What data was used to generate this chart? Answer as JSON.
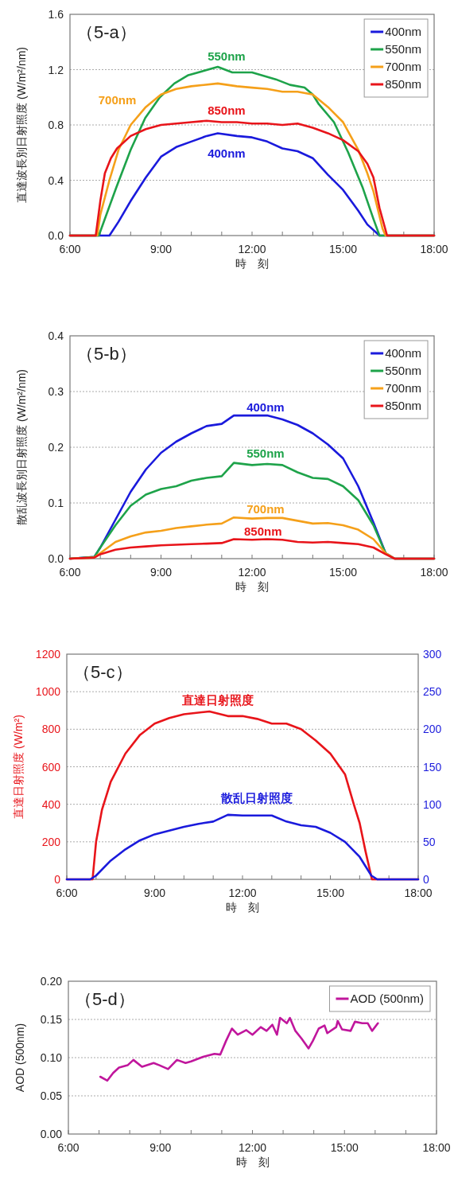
{
  "chart_data": [
    {
      "type": "line",
      "title": "（5-a）",
      "xlabel": "時　刻",
      "ylabel": "直達波長別日射照度 (W/m²/nm)",
      "xlim": [
        6,
        18
      ],
      "ylim": [
        0,
        1.6
      ],
      "xticks": [
        {
          "value": 6,
          "label": "6:00"
        },
        {
          "value": 7,
          "label": null
        },
        {
          "value": 8,
          "label": null
        },
        {
          "value": 9,
          "label": "9:00"
        },
        {
          "value": 10,
          "label": null
        },
        {
          "value": 11,
          "label": null
        },
        {
          "value": 12,
          "label": "12:00"
        },
        {
          "value": 13,
          "label": null
        },
        {
          "value": 14,
          "label": null
        },
        {
          "value": 15,
          "label": "15:00"
        },
        {
          "value": 16,
          "label": null
        },
        {
          "value": 17,
          "label": null
        },
        {
          "value": 18,
          "label": "18:00"
        }
      ],
      "yticks": [
        {
          "value": 0,
          "label": "0.0"
        },
        0.4,
        0.8,
        1.2,
        1.6
      ],
      "grid": "y",
      "legend": "top right",
      "marker": "none",
      "line_style": "solid",
      "annotations": [
        "400nm",
        "550nm",
        "700nm",
        "850nm"
      ],
      "series": [
        {
          "name": "400nm",
          "color": "#1a1adc",
          "x": [
            6,
            7.3,
            7.6,
            8,
            8.5,
            9,
            9.5,
            10,
            10.5,
            10.87,
            11.5,
            12,
            12.5,
            13,
            13.5,
            14,
            14.5,
            15,
            15.5,
            15.8,
            16.2,
            18
          ],
          "values": [
            0,
            0,
            0.1,
            0.25,
            0.42,
            0.57,
            0.64,
            0.68,
            0.72,
            0.74,
            0.72,
            0.71,
            0.68,
            0.63,
            0.61,
            0.56,
            0.44,
            0.33,
            0.18,
            0.08,
            0,
            0
          ]
        },
        {
          "name": "550nm",
          "color": "#1ea34a",
          "x": [
            6,
            6.95,
            7.53,
            8,
            8.48,
            8.96,
            9.44,
            9.9,
            10.87,
            11.35,
            12,
            12.78,
            13.25,
            13.73,
            14,
            14.2,
            14.7,
            15.17,
            15.64,
            16,
            16.2,
            18
          ],
          "values": [
            0,
            0,
            0.35,
            0.62,
            0.85,
            1.0,
            1.1,
            1.16,
            1.22,
            1.18,
            1.18,
            1.13,
            1.09,
            1.07,
            1.02,
            0.95,
            0.82,
            0.6,
            0.35,
            0.12,
            0,
            0
          ]
        },
        {
          "name": "700nm",
          "color": "#f5a01a",
          "x": [
            6,
            6.9,
            7,
            7.3,
            7.6,
            8,
            8.5,
            9,
            9.5,
            10,
            10.87,
            11.5,
            12,
            12.5,
            13,
            13.5,
            14,
            14.5,
            15,
            15.5,
            15.8,
            16,
            16.3,
            16.4,
            18
          ],
          "values": [
            0,
            0,
            0.15,
            0.4,
            0.62,
            0.8,
            0.93,
            1.02,
            1.06,
            1.08,
            1.1,
            1.08,
            1.07,
            1.06,
            1.04,
            1.04,
            1.02,
            0.93,
            0.82,
            0.62,
            0.45,
            0.32,
            0.05,
            0,
            0
          ]
        },
        {
          "name": "850nm",
          "color": "#e8141a",
          "x": [
            6,
            6.85,
            7,
            7.15,
            7.35,
            7.55,
            8,
            8.5,
            9,
            9.5,
            10,
            10.5,
            11,
            11.5,
            12,
            12.5,
            13,
            13.5,
            14,
            14.5,
            15,
            15.5,
            15.8,
            16,
            16.2,
            16.45,
            18
          ],
          "values": [
            0,
            0,
            0.25,
            0.45,
            0.56,
            0.63,
            0.72,
            0.77,
            0.8,
            0.81,
            0.82,
            0.83,
            0.82,
            0.82,
            0.81,
            0.81,
            0.8,
            0.81,
            0.78,
            0.74,
            0.69,
            0.61,
            0.52,
            0.42,
            0.2,
            0,
            0
          ]
        }
      ]
    },
    {
      "type": "line",
      "title": "（5-b）",
      "xlabel": "時　刻",
      "ylabel": "散乱波長別日射照度 (W/m²/nm)",
      "xlim": [
        6,
        18
      ],
      "ylim": [
        0,
        0.4
      ],
      "xticks": [
        {
          "value": 6,
          "label": "6:00"
        },
        {
          "value": 7,
          "label": null
        },
        {
          "value": 8,
          "label": null
        },
        {
          "value": 9,
          "label": "9:00"
        },
        {
          "value": 10,
          "label": null
        },
        {
          "value": 11,
          "label": null
        },
        {
          "value": 12,
          "label": "12:00"
        },
        {
          "value": 13,
          "label": null
        },
        {
          "value": 14,
          "label": null
        },
        {
          "value": 15,
          "label": "15:00"
        },
        {
          "value": 16,
          "label": null
        },
        {
          "value": 17,
          "label": null
        },
        {
          "value": 18,
          "label": "18:00"
        }
      ],
      "yticks": [
        {
          "value": 0,
          "label": "0.0"
        },
        0.1,
        0.2,
        0.3,
        0.4
      ],
      "grid": "y",
      "legend": "top right",
      "marker": "none",
      "line_style": "solid",
      "annotations": [
        "400nm",
        "550nm",
        "700nm",
        "850nm"
      ],
      "series": [
        {
          "name": "400nm",
          "color": "#1a1adc",
          "x": [
            6,
            6.8,
            7,
            7.5,
            8,
            8.5,
            9,
            9.5,
            10,
            10.5,
            11,
            11.4,
            12,
            12.5,
            13,
            13.5,
            14,
            14.5,
            15,
            15.5,
            16,
            16.4,
            16.7,
            18
          ],
          "values": [
            0,
            0.003,
            0.02,
            0.07,
            0.12,
            0.16,
            0.19,
            0.21,
            0.225,
            0.238,
            0.242,
            0.257,
            0.257,
            0.257,
            0.25,
            0.24,
            0.225,
            0.205,
            0.18,
            0.13,
            0.065,
            0.01,
            0,
            0
          ]
        },
        {
          "name": "550nm",
          "color": "#1ea34a",
          "x": [
            6,
            6.8,
            7,
            7.5,
            8,
            8.5,
            9,
            9.5,
            10,
            10.5,
            11,
            11.4,
            12,
            12.5,
            13,
            13.5,
            14,
            14.5,
            15,
            15.5,
            16,
            16.4,
            16.7,
            18
          ],
          "values": [
            0,
            0.003,
            0.02,
            0.06,
            0.095,
            0.115,
            0.125,
            0.13,
            0.14,
            0.145,
            0.148,
            0.172,
            0.168,
            0.17,
            0.168,
            0.155,
            0.145,
            0.143,
            0.13,
            0.105,
            0.06,
            0.01,
            0,
            0
          ]
        },
        {
          "name": "700nm",
          "color": "#f5a01a",
          "x": [
            6,
            6.8,
            7,
            7.5,
            8,
            8.5,
            9,
            9.5,
            10,
            10.5,
            11,
            11.4,
            12,
            12.5,
            13,
            13.5,
            14,
            14.5,
            15,
            15.5,
            16,
            16.4,
            16.7,
            18
          ],
          "values": [
            0,
            0.002,
            0.01,
            0.03,
            0.04,
            0.047,
            0.05,
            0.055,
            0.058,
            0.061,
            0.063,
            0.074,
            0.072,
            0.073,
            0.073,
            0.068,
            0.063,
            0.064,
            0.06,
            0.052,
            0.035,
            0.01,
            0,
            0
          ]
        },
        {
          "name": "850nm",
          "color": "#e8141a",
          "x": [
            6,
            6.8,
            7,
            7.5,
            8,
            8.5,
            9,
            9.5,
            10,
            10.5,
            11,
            11.4,
            12,
            12.5,
            13,
            13.5,
            14,
            14.5,
            15,
            15.5,
            16,
            16.4,
            16.7,
            18
          ],
          "values": [
            0,
            0.002,
            0.008,
            0.016,
            0.02,
            0.022,
            0.024,
            0.025,
            0.026,
            0.027,
            0.028,
            0.035,
            0.034,
            0.035,
            0.034,
            0.03,
            0.029,
            0.03,
            0.028,
            0.026,
            0.02,
            0.008,
            0,
            0
          ]
        }
      ]
    },
    {
      "type": "line",
      "title": "（5-c）",
      "xlabel": "時　刻",
      "ylabel": "直達日射照度 (W/m²)",
      "xlim": [
        6,
        18
      ],
      "ylim": [
        0,
        1200
      ],
      "y2lim": [
        0,
        300
      ],
      "xticks": [
        {
          "value": 6,
          "label": "6:00"
        },
        {
          "value": 7,
          "label": null
        },
        {
          "value": 8,
          "label": null
        },
        {
          "value": 9,
          "label": "9:00"
        },
        {
          "value": 10,
          "label": null
        },
        {
          "value": 11,
          "label": null
        },
        {
          "value": 12,
          "label": "12:00"
        },
        {
          "value": 13,
          "label": null
        },
        {
          "value": 14,
          "label": null
        },
        {
          "value": 15,
          "label": "15:00"
        },
        {
          "value": 16,
          "label": null
        },
        {
          "value": 17,
          "label": null
        },
        {
          "value": 18,
          "label": "18:00"
        }
      ],
      "yticks": [
        0,
        200,
        400,
        600,
        800,
        1000,
        1200
      ],
      "y2ticks": [
        0,
        50,
        100,
        150,
        200,
        250,
        300
      ],
      "grid": "y",
      "marker": "none",
      "line_style": "solid",
      "annotations": [
        "直達日射照度",
        "散乱日射照度"
      ],
      "series": [
        {
          "color": "#e8141a",
          "x": [
            6,
            6.88,
            7,
            7.2,
            7.5,
            8,
            8.5,
            9,
            9.5,
            10,
            10.87,
            11.5,
            12,
            12.5,
            13,
            13.5,
            14,
            14.5,
            15,
            15.5,
            15.8,
            16,
            16.2,
            16.42,
            18
          ],
          "values": [
            0,
            0,
            200,
            370,
            520,
            670,
            770,
            830,
            860,
            880,
            895,
            870,
            870,
            855,
            830,
            830,
            800,
            740,
            670,
            560,
            400,
            300,
            150,
            0,
            0
          ]
        },
        {
          "color": "#1a1adc",
          "axis": "y2",
          "x": [
            6,
            6.8,
            7,
            7.5,
            8,
            8.5,
            9,
            9.5,
            10,
            10.5,
            11,
            11.5,
            12,
            12.5,
            13,
            13.5,
            14,
            14.5,
            15,
            15.5,
            16,
            16.4,
            16.6,
            18
          ],
          "values": [
            0,
            0,
            5,
            25,
            40,
            52,
            60,
            65,
            70,
            74,
            77,
            86,
            85,
            85,
            85,
            77,
            72,
            70,
            62,
            50,
            30,
            5,
            0,
            0
          ]
        }
      ]
    },
    {
      "type": "line",
      "title": "（5-d）",
      "xlabel": "時　刻",
      "ylabel": "AOD (500nm)",
      "xlim": [
        6,
        18
      ],
      "ylim": [
        0,
        0.2
      ],
      "xticks": [
        {
          "value": 6,
          "label": "6:00"
        },
        {
          "value": 7,
          "label": null
        },
        {
          "value": 8,
          "label": null
        },
        {
          "value": 9,
          "label": "9:00"
        },
        {
          "value": 10,
          "label": null
        },
        {
          "value": 11,
          "label": null
        },
        {
          "value": 12,
          "label": "12:00"
        },
        {
          "value": 13,
          "label": null
        },
        {
          "value": 14,
          "label": null
        },
        {
          "value": 15,
          "label": "15:00"
        },
        {
          "value": 16,
          "label": null
        },
        {
          "value": 17,
          "label": null
        },
        {
          "value": 18,
          "label": "18:00"
        }
      ],
      "yticks": [
        {
          "value": 0,
          "label": "0.00"
        },
        0.05,
        {
          "value": 0.1,
          "label": "0.10"
        },
        0.15,
        {
          "value": 0.2,
          "label": "0.20"
        }
      ],
      "grid": "y",
      "legend": "top right",
      "marker": "none",
      "line_style": "solid",
      "series": [
        {
          "name": "AOD (500nm)",
          "color": "#c0169c",
          "x": [
            7.04,
            7.27,
            7.46,
            7.65,
            7.93,
            8.12,
            8.4,
            8.78,
            8.97,
            9.25,
            9.54,
            9.82,
            10,
            10.39,
            10.76,
            10.95,
            11.14,
            11.33,
            11.52,
            11.8,
            12,
            12.27,
            12.46,
            12.65,
            12.8,
            12.9,
            13.12,
            13.22,
            13.4,
            13.6,
            13.83,
            13.97,
            14.16,
            14.35,
            14.44,
            14.73,
            14.78,
            14.92,
            15.2,
            15.34,
            15.58,
            15.76,
            15.9,
            16.09
          ],
          "values": [
            0.075,
            0.07,
            0.08,
            0.087,
            0.09,
            0.097,
            0.088,
            0.093,
            0.09,
            0.085,
            0.097,
            0.093,
            0.095,
            0.101,
            0.105,
            0.104,
            0.122,
            0.138,
            0.13,
            0.136,
            0.13,
            0.14,
            0.135,
            0.143,
            0.13,
            0.152,
            0.145,
            0.152,
            0.135,
            0.125,
            0.112,
            0.122,
            0.138,
            0.142,
            0.132,
            0.14,
            0.148,
            0.137,
            0.135,
            0.147,
            0.145,
            0.145,
            0.135,
            0.145
          ]
        }
      ]
    }
  ]
}
